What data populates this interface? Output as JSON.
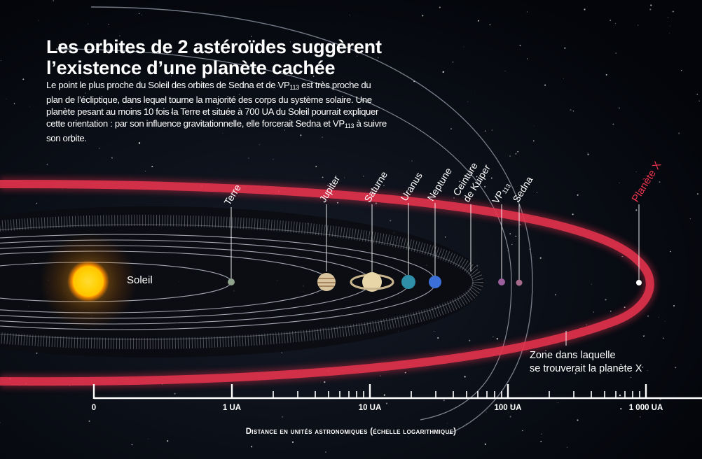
{
  "title": "Les orbites de 2 astéroïdes suggèrent\nl’existence d’une planète cachée",
  "intro": {
    "part1": "Le point le plus proche du Soleil des orbites de Sedna et de VP",
    "sub1": "113",
    "part2": " est très proche du plan de l’écliptique, dans lequel tourne la majorité des corps du système solaire. Une planète pesant au moins 10 fois la Terre et située à 700 UA du Soleil pourrait expliquer cette orientation : par son influence gravitationnelle, elle forcerait Sedna et VP",
    "sub2": "113",
    "part3": " à suivre son orbite."
  },
  "sun_label": "Soleil",
  "bodies": {
    "terre": "Terre",
    "jupiter": "Jupiter",
    "saturne": "Saturne",
    "uranus": "Uranus",
    "neptune": "Neptune",
    "kuiper": "Ceinture\nde Kuiper",
    "vp113_main": "VP",
    "vp113_sub": "113",
    "sedna": "Sedna",
    "planete_x": "Planète X"
  },
  "zone_label": "Zone dans laquelle\nse trouverait la planète X",
  "axis": {
    "ticks": [
      "0",
      "1 UA",
      "10 UA",
      "100 UA",
      "1 000 UA"
    ],
    "title": "Distance en unités astronomiques (échelle logarithmique)",
    "scale": "logarithmique"
  },
  "colors": {
    "background": "#05070c",
    "orbit_lines": "#c8ccd6",
    "planet_x_zone": "#e8334d",
    "sun": "#ffb000",
    "text": "#ffffff"
  }
}
